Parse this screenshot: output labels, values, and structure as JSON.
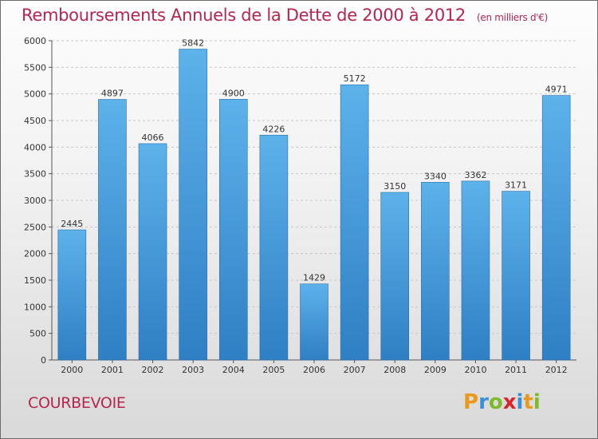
{
  "chart_data": {
    "type": "bar",
    "title": "Remboursements Annuels de la Dette de 2000 à 2012",
    "unit_note": "(en milliers d'€)",
    "categories": [
      "2000",
      "2001",
      "2002",
      "2003",
      "2004",
      "2005",
      "2006",
      "2007",
      "2008",
      "2009",
      "2010",
      "2011",
      "2012"
    ],
    "values": [
      2445,
      4897,
      4066,
      5842,
      4900,
      4226,
      1429,
      5172,
      3150,
      3340,
      3362,
      3171,
      4971
    ],
    "ylim": [
      0,
      6000
    ],
    "yticks": [
      0,
      500,
      1000,
      1500,
      2000,
      2500,
      3000,
      3500,
      4000,
      4500,
      5000,
      5500,
      6000
    ],
    "grid": true,
    "bar_color": "#4a9fe0",
    "title_color": "#b5264e"
  },
  "footer": {
    "city": "COURBEVOIE",
    "logo_text": "Proxiti",
    "logo_letters": [
      {
        "ch": "P",
        "color": "#e89a1c"
      },
      {
        "ch": "r",
        "color": "#3a8fd6"
      },
      {
        "ch": "o",
        "color": "#7dbb2a"
      },
      {
        "ch": "x",
        "color": "#d8262e"
      },
      {
        "ch": "i",
        "color": "#3a8fd6"
      },
      {
        "ch": "t",
        "color": "#e89a1c"
      },
      {
        "ch": "i",
        "color": "#7dbb2a"
      }
    ]
  }
}
